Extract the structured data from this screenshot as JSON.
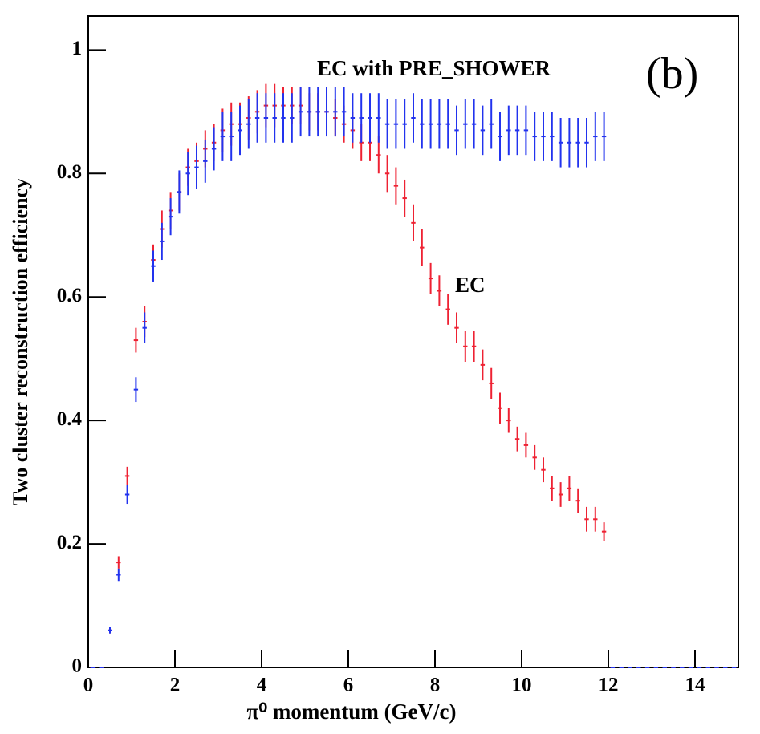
{
  "chart_data": {
    "type": "errorbar",
    "x_label": "π⁰ momentum (GeV/c)",
    "y_label": "Two cluster reconstruction efficiency",
    "annotations": [
      "EC with PRE_SHOWER",
      "EC",
      "(b)"
    ],
    "xlim": [
      0,
      15
    ],
    "xticks": [
      0,
      2,
      4,
      6,
      8,
      10,
      12,
      14
    ],
    "ylim": [
      0,
      1.055
    ],
    "yticks": [
      0,
      0.2,
      0.4,
      0.6,
      0.8,
      1
    ],
    "bin_width": 0.2,
    "x": [
      0.1,
      0.3,
      0.5,
      0.7,
      0.9,
      1.1,
      1.3,
      1.5,
      1.7,
      1.9,
      2.1,
      2.3,
      2.5,
      2.7,
      2.9,
      3.1,
      3.3,
      3.5,
      3.7,
      3.9,
      4.1,
      4.3,
      4.5,
      4.7,
      4.9,
      5.1,
      5.3,
      5.5,
      5.7,
      5.9,
      6.1,
      6.3,
      6.5,
      6.7,
      6.9,
      7.1,
      7.3,
      7.5,
      7.7,
      7.9,
      8.1,
      8.3,
      8.5,
      8.7,
      8.9,
      9.1,
      9.3,
      9.5,
      9.7,
      9.9,
      10.1,
      10.3,
      10.5,
      10.7,
      10.9,
      11.1,
      11.3,
      11.5,
      11.7,
      11.9,
      12.1,
      12.3,
      12.5,
      12.7,
      12.9,
      13.1,
      13.3,
      13.5,
      13.7,
      13.9,
      14.1,
      14.3,
      14.5,
      14.7,
      14.9
    ],
    "series": [
      {
        "color": "#ee2233",
        "values": [
          0,
          0,
          0.06,
          0.17,
          0.31,
          0.53,
          0.56,
          0.66,
          0.71,
          0.74,
          0.77,
          0.81,
          0.82,
          0.84,
          0.85,
          0.87,
          0.88,
          0.88,
          0.89,
          0.9,
          0.91,
          0.91,
          0.91,
          0.91,
          0.91,
          0.9,
          0.9,
          0.9,
          0.89,
          0.88,
          0.87,
          0.85,
          0.85,
          0.83,
          0.8,
          0.78,
          0.76,
          0.72,
          0.68,
          0.63,
          0.61,
          0.58,
          0.55,
          0.52,
          0.52,
          0.49,
          0.46,
          0.42,
          0.4,
          0.37,
          0.36,
          0.34,
          0.32,
          0.29,
          0.28,
          0.29,
          0.27,
          0.24,
          0.24,
          0.22,
          0,
          0,
          0,
          0,
          0,
          0,
          0,
          0,
          0,
          0,
          0,
          0,
          0,
          0,
          0
        ],
        "errors": [
          0,
          0,
          0.005,
          0.01,
          0.015,
          0.02,
          0.025,
          0.025,
          0.03,
          0.03,
          0.03,
          0.03,
          0.03,
          0.03,
          0.03,
          0.035,
          0.035,
          0.035,
          0.035,
          0.035,
          0.035,
          0.035,
          0.03,
          0.03,
          0.03,
          0.03,
          0.03,
          0.03,
          0.03,
          0.03,
          0.03,
          0.03,
          0.03,
          0.03,
          0.03,
          0.03,
          0.03,
          0.03,
          0.03,
          0.025,
          0.025,
          0.025,
          0.025,
          0.025,
          0.025,
          0.025,
          0.025,
          0.025,
          0.02,
          0.02,
          0.02,
          0.02,
          0.02,
          0.02,
          0.02,
          0.02,
          0.02,
          0.02,
          0.02,
          0.015,
          0,
          0,
          0,
          0,
          0,
          0,
          0,
          0,
          0,
          0,
          0,
          0,
          0,
          0,
          0
        ]
      },
      {
        "color": "#2233ee",
        "values": [
          0,
          0,
          0.06,
          0.15,
          0.28,
          0.45,
          0.55,
          0.65,
          0.69,
          0.73,
          0.77,
          0.8,
          0.81,
          0.82,
          0.84,
          0.86,
          0.86,
          0.87,
          0.88,
          0.89,
          0.89,
          0.89,
          0.89,
          0.89,
          0.9,
          0.9,
          0.9,
          0.9,
          0.9,
          0.9,
          0.89,
          0.89,
          0.89,
          0.89,
          0.88,
          0.88,
          0.88,
          0.89,
          0.88,
          0.88,
          0.88,
          0.88,
          0.87,
          0.88,
          0.88,
          0.87,
          0.88,
          0.86,
          0.87,
          0.87,
          0.87,
          0.86,
          0.86,
          0.86,
          0.85,
          0.85,
          0.85,
          0.85,
          0.86,
          0.86,
          0,
          0,
          0,
          0,
          0,
          0,
          0,
          0,
          0,
          0,
          0,
          0,
          0,
          0,
          0
        ],
        "errors": [
          0,
          0,
          0.005,
          0.01,
          0.015,
          0.02,
          0.025,
          0.025,
          0.03,
          0.03,
          0.035,
          0.035,
          0.035,
          0.035,
          0.035,
          0.04,
          0.04,
          0.04,
          0.04,
          0.04,
          0.04,
          0.04,
          0.04,
          0.04,
          0.04,
          0.04,
          0.04,
          0.04,
          0.04,
          0.04,
          0.04,
          0.04,
          0.04,
          0.04,
          0.04,
          0.04,
          0.04,
          0.04,
          0.04,
          0.04,
          0.04,
          0.04,
          0.04,
          0.04,
          0.04,
          0.04,
          0.04,
          0.04,
          0.04,
          0.04,
          0.04,
          0.04,
          0.04,
          0.04,
          0.04,
          0.04,
          0.04,
          0.04,
          0.04,
          0.04,
          0,
          0,
          0,
          0,
          0,
          0,
          0,
          0,
          0,
          0,
          0,
          0,
          0,
          0,
          0
        ]
      }
    ]
  }
}
